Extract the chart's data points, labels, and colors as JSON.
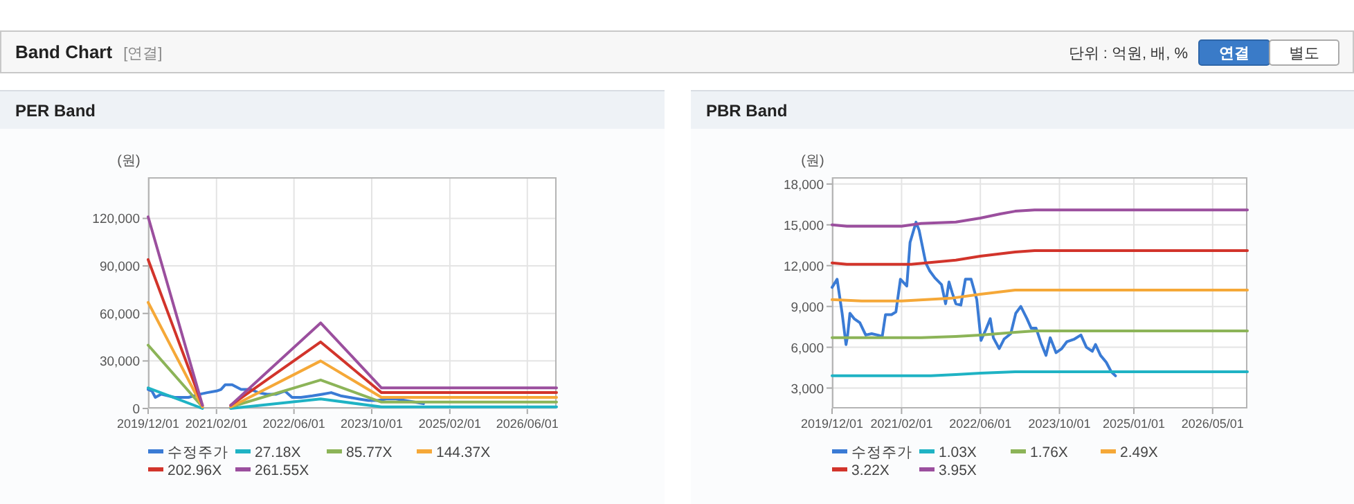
{
  "chart_data": [
    {
      "type": "other",
      "title": "Band Chart",
      "subtitle": "[연결]",
      "annotations": [
        "단위 : 억원, 배, %",
        "연결",
        "별도"
      ]
    },
    {
      "type": "line",
      "title": "PER Band",
      "ylabel": "(원)",
      "xlim": [
        "2019-12-01",
        "2026-12-01"
      ],
      "ylim": [
        0,
        146000
      ],
      "xticks": [
        {
          "value": "2019-12-01",
          "label": "2019/12/01"
        },
        {
          "value": "2021-02-01",
          "label": "2021/02/01"
        },
        {
          "value": "2022-06-01",
          "label": "2022/06/01"
        },
        {
          "value": "2023-10-01",
          "label": "2023/10/01"
        },
        {
          "value": "2025-02-01",
          "label": "2025/02/01"
        },
        {
          "value": "2026-06-01",
          "label": "2026/06/01"
        }
      ],
      "yticks": [
        0,
        {
          "value": 30000,
          "label": "30,000"
        },
        {
          "value": 60000,
          "label": "60,000"
        },
        {
          "value": 90000,
          "label": "90,000"
        },
        {
          "value": 120000,
          "label": "120,000"
        }
      ],
      "grid": true,
      "legend": "bottom",
      "line_style": "solid",
      "series": [
        {
          "name": "수정주가",
          "color": "#3a7bd5",
          "x": [
            "2019-12-01",
            "2019-12-25",
            "2020-01-15",
            "2020-02-20",
            "2020-04-05",
            "2020-05-15",
            "2020-08-10",
            "2020-10-20",
            "2020-12-05",
            "2021-02-01",
            "2021-03-01",
            "2021-03-28",
            "2021-05-10",
            "2021-07-05",
            "2021-09-05",
            "2021-10-20",
            "2021-12-15",
            "2022-02-10",
            "2022-04-05",
            "2022-05-20",
            "2022-07-15",
            "2022-09-25",
            "2022-11-25",
            "2023-01-20",
            "2023-03-20",
            "2023-05-15",
            "2023-07-10",
            "2023-09-10",
            "2023-11-05",
            "2024-01-01",
            "2024-03-01",
            "2024-04-28",
            "2024-06-25",
            "2024-08-20"
          ],
          "values": [
            12000,
            11000,
            7000,
            9000,
            8000,
            7000,
            7000,
            9000,
            10000,
            11000,
            12000,
            15000,
            15000,
            12000,
            12000,
            10000,
            9000,
            9000,
            11000,
            7000,
            7000,
            8000,
            9000,
            10000,
            8000,
            7000,
            6000,
            5000,
            5000,
            6000,
            6000,
            5000,
            4000,
            3000
          ]
        },
        {
          "name": "27.18X",
          "color": "#1fb3c4",
          "x": [
            "2019-12-01",
            "2020-11-05"
          ],
          "values": [
            13000,
            0
          ]
        },
        {
          "name": "85.77X",
          "color": "#8cb458",
          "x": [
            "2019-12-01",
            "2020-11-05"
          ],
          "values": [
            40000,
            1000
          ]
        },
        {
          "name": "144.37X",
          "color": "#f5a838",
          "x": [
            "2019-12-01",
            "2020-11-05"
          ],
          "values": [
            67000,
            1000
          ]
        },
        {
          "name": "202.96X",
          "color": "#d2342b",
          "x": [
            "2019-12-01",
            "2020-11-05"
          ],
          "values": [
            94000,
            2000
          ]
        },
        {
          "name": "261.55X",
          "color": "#9b4f9e",
          "x": [
            "2019-12-01",
            "2020-11-05"
          ],
          "values": [
            121000,
            2000
          ]
        },
        {
          "color": "#1fb3c4",
          "x": [
            "2021-05-01",
            "2022-11-15",
            "2023-12-01",
            "2026-12-01"
          ],
          "values": [
            0,
            6000,
            1000,
            1000
          ]
        },
        {
          "color": "#8cb458",
          "x": [
            "2021-05-01",
            "2022-11-15",
            "2023-12-01",
            "2026-12-01"
          ],
          "values": [
            1000,
            18000,
            4000,
            4000
          ]
        },
        {
          "color": "#f5a838",
          "x": [
            "2021-05-01",
            "2022-11-15",
            "2023-12-01",
            "2026-12-01"
          ],
          "values": [
            1000,
            30000,
            7000,
            7000
          ]
        },
        {
          "color": "#d2342b",
          "x": [
            "2021-05-01",
            "2022-11-15",
            "2023-12-01",
            "2026-12-01"
          ],
          "values": [
            2000,
            42000,
            10000,
            10000
          ]
        },
        {
          "color": "#9b4f9e",
          "x": [
            "2021-05-01",
            "2022-11-15",
            "2023-12-01",
            "2026-12-01"
          ],
          "values": [
            2000,
            54000,
            13000,
            13000
          ]
        }
      ]
    },
    {
      "type": "line",
      "title": "PBR Band",
      "ylabel": "(원)",
      "xlim": [
        "2019-12-01",
        "2026-12-01"
      ],
      "ylim": [
        1500,
        18500
      ],
      "xticks": [
        {
          "value": "2019-12-01",
          "label": "2019/12/01"
        },
        {
          "value": "2021-02-01",
          "label": "2021/02/01"
        },
        {
          "value": "2022-06-01",
          "label": "2022/06/01"
        },
        {
          "value": "2023-10-01",
          "label": "2023/10/01"
        },
        {
          "value": "2025-01-01",
          "label": "2025/01/01"
        },
        {
          "value": "2026-05-01",
          "label": "2026/05/01"
        }
      ],
      "yticks": [
        {
          "value": 3000,
          "label": "3,000"
        },
        {
          "value": 6000,
          "label": "6,000"
        },
        {
          "value": 9000,
          "label": "9,000"
        },
        {
          "value": 12000,
          "label": "12,000"
        },
        {
          "value": 15000,
          "label": "15,000"
        },
        {
          "value": 18000,
          "label": "18,000"
        }
      ],
      "grid": true,
      "legend": "bottom",
      "line_style": "solid",
      "series": [
        {
          "name": "수정주가",
          "color": "#3a7bd5",
          "x": [
            "2019-12-01",
            "2020-01-01",
            "2020-02-01",
            "2020-02-25",
            "2020-03-05",
            "2020-03-20",
            "2020-04-15",
            "2020-05-20",
            "2020-06-25",
            "2020-08-01",
            "2020-09-05",
            "2020-10-05",
            "2020-10-25",
            "2020-12-01",
            "2020-12-28",
            "2021-01-25",
            "2021-03-05",
            "2021-03-25",
            "2021-05-01",
            "2021-05-20",
            "2021-06-30",
            "2021-07-25",
            "2021-08-25",
            "2021-10-05",
            "2021-10-30",
            "2021-11-20",
            "2021-12-10",
            "2022-01-01",
            "2022-02-01",
            "2022-03-01",
            "2022-04-05",
            "2022-05-10",
            "2022-06-05",
            "2022-07-05",
            "2022-08-01",
            "2022-08-20",
            "2022-09-25",
            "2022-10-25",
            "2022-12-05",
            "2023-01-05",
            "2023-02-05",
            "2023-03-15",
            "2023-04-10",
            "2023-05-10",
            "2023-06-10",
            "2023-07-10",
            "2023-08-05",
            "2023-09-10",
            "2023-10-15",
            "2023-11-15",
            "2024-01-01",
            "2024-02-10",
            "2024-03-15",
            "2024-04-20",
            "2024-05-10",
            "2024-06-10",
            "2024-07-15",
            "2024-08-15",
            "2024-09-10"
          ],
          "values": [
            10400,
            11000,
            8500,
            6200,
            6800,
            8500,
            8100,
            7800,
            6900,
            7000,
            6900,
            6800,
            8400,
            8400,
            8600,
            11000,
            10500,
            13700,
            15200,
            14600,
            12200,
            11600,
            11100,
            10600,
            9200,
            10800,
            10000,
            9200,
            9100,
            11000,
            11000,
            9500,
            6500,
            7300,
            8100,
            6700,
            5900,
            6600,
            7000,
            8500,
            9000,
            8100,
            7400,
            7400,
            6300,
            5400,
            6700,
            5600,
            5900,
            6400,
            6600,
            6900,
            6000,
            5700,
            6200,
            5400,
            4900,
            4200,
            3900
          ]
        },
        {
          "name": "1.03X",
          "color": "#1fb3c4",
          "x": [
            "2019-12-01",
            "2021-08-01",
            "2022-01-01",
            "2022-06-01",
            "2023-01-01",
            "2026-12-01"
          ],
          "values": [
            3900,
            3900,
            4000,
            4100,
            4200,
            4200
          ]
        },
        {
          "name": "1.76X",
          "color": "#8cb458",
          "x": [
            "2019-12-01",
            "2021-06-01",
            "2022-01-01",
            "2022-06-01",
            "2023-01-01",
            "2023-05-01",
            "2026-12-01"
          ],
          "values": [
            6700,
            6700,
            6800,
            6900,
            7100,
            7200,
            7200
          ]
        },
        {
          "name": "2.49X",
          "color": "#f5a838",
          "x": [
            "2019-12-01",
            "2020-06-01",
            "2021-02-01",
            "2021-12-01",
            "2022-06-01",
            "2023-01-01",
            "2026-12-01"
          ],
          "values": [
            9500,
            9400,
            9400,
            9600,
            9900,
            10200,
            10200
          ]
        },
        {
          "name": "3.22X",
          "color": "#d2342b",
          "x": [
            "2019-12-01",
            "2020-03-01",
            "2021-04-01",
            "2022-01-01",
            "2022-06-01",
            "2023-01-01",
            "2023-05-01",
            "2026-12-01"
          ],
          "values": [
            12200,
            12100,
            12100,
            12400,
            12700,
            13000,
            13100,
            13100
          ]
        },
        {
          "name": "3.95X",
          "color": "#9b4f9e",
          "x": [
            "2019-12-01",
            "2020-03-01",
            "2021-02-01",
            "2021-06-01",
            "2022-01-01",
            "2022-06-01",
            "2022-10-01",
            "2023-01-01",
            "2023-05-01",
            "2026-12-01"
          ],
          "values": [
            15000,
            14900,
            14900,
            15100,
            15200,
            15500,
            15800,
            16000,
            16100,
            16100
          ]
        }
      ]
    }
  ]
}
